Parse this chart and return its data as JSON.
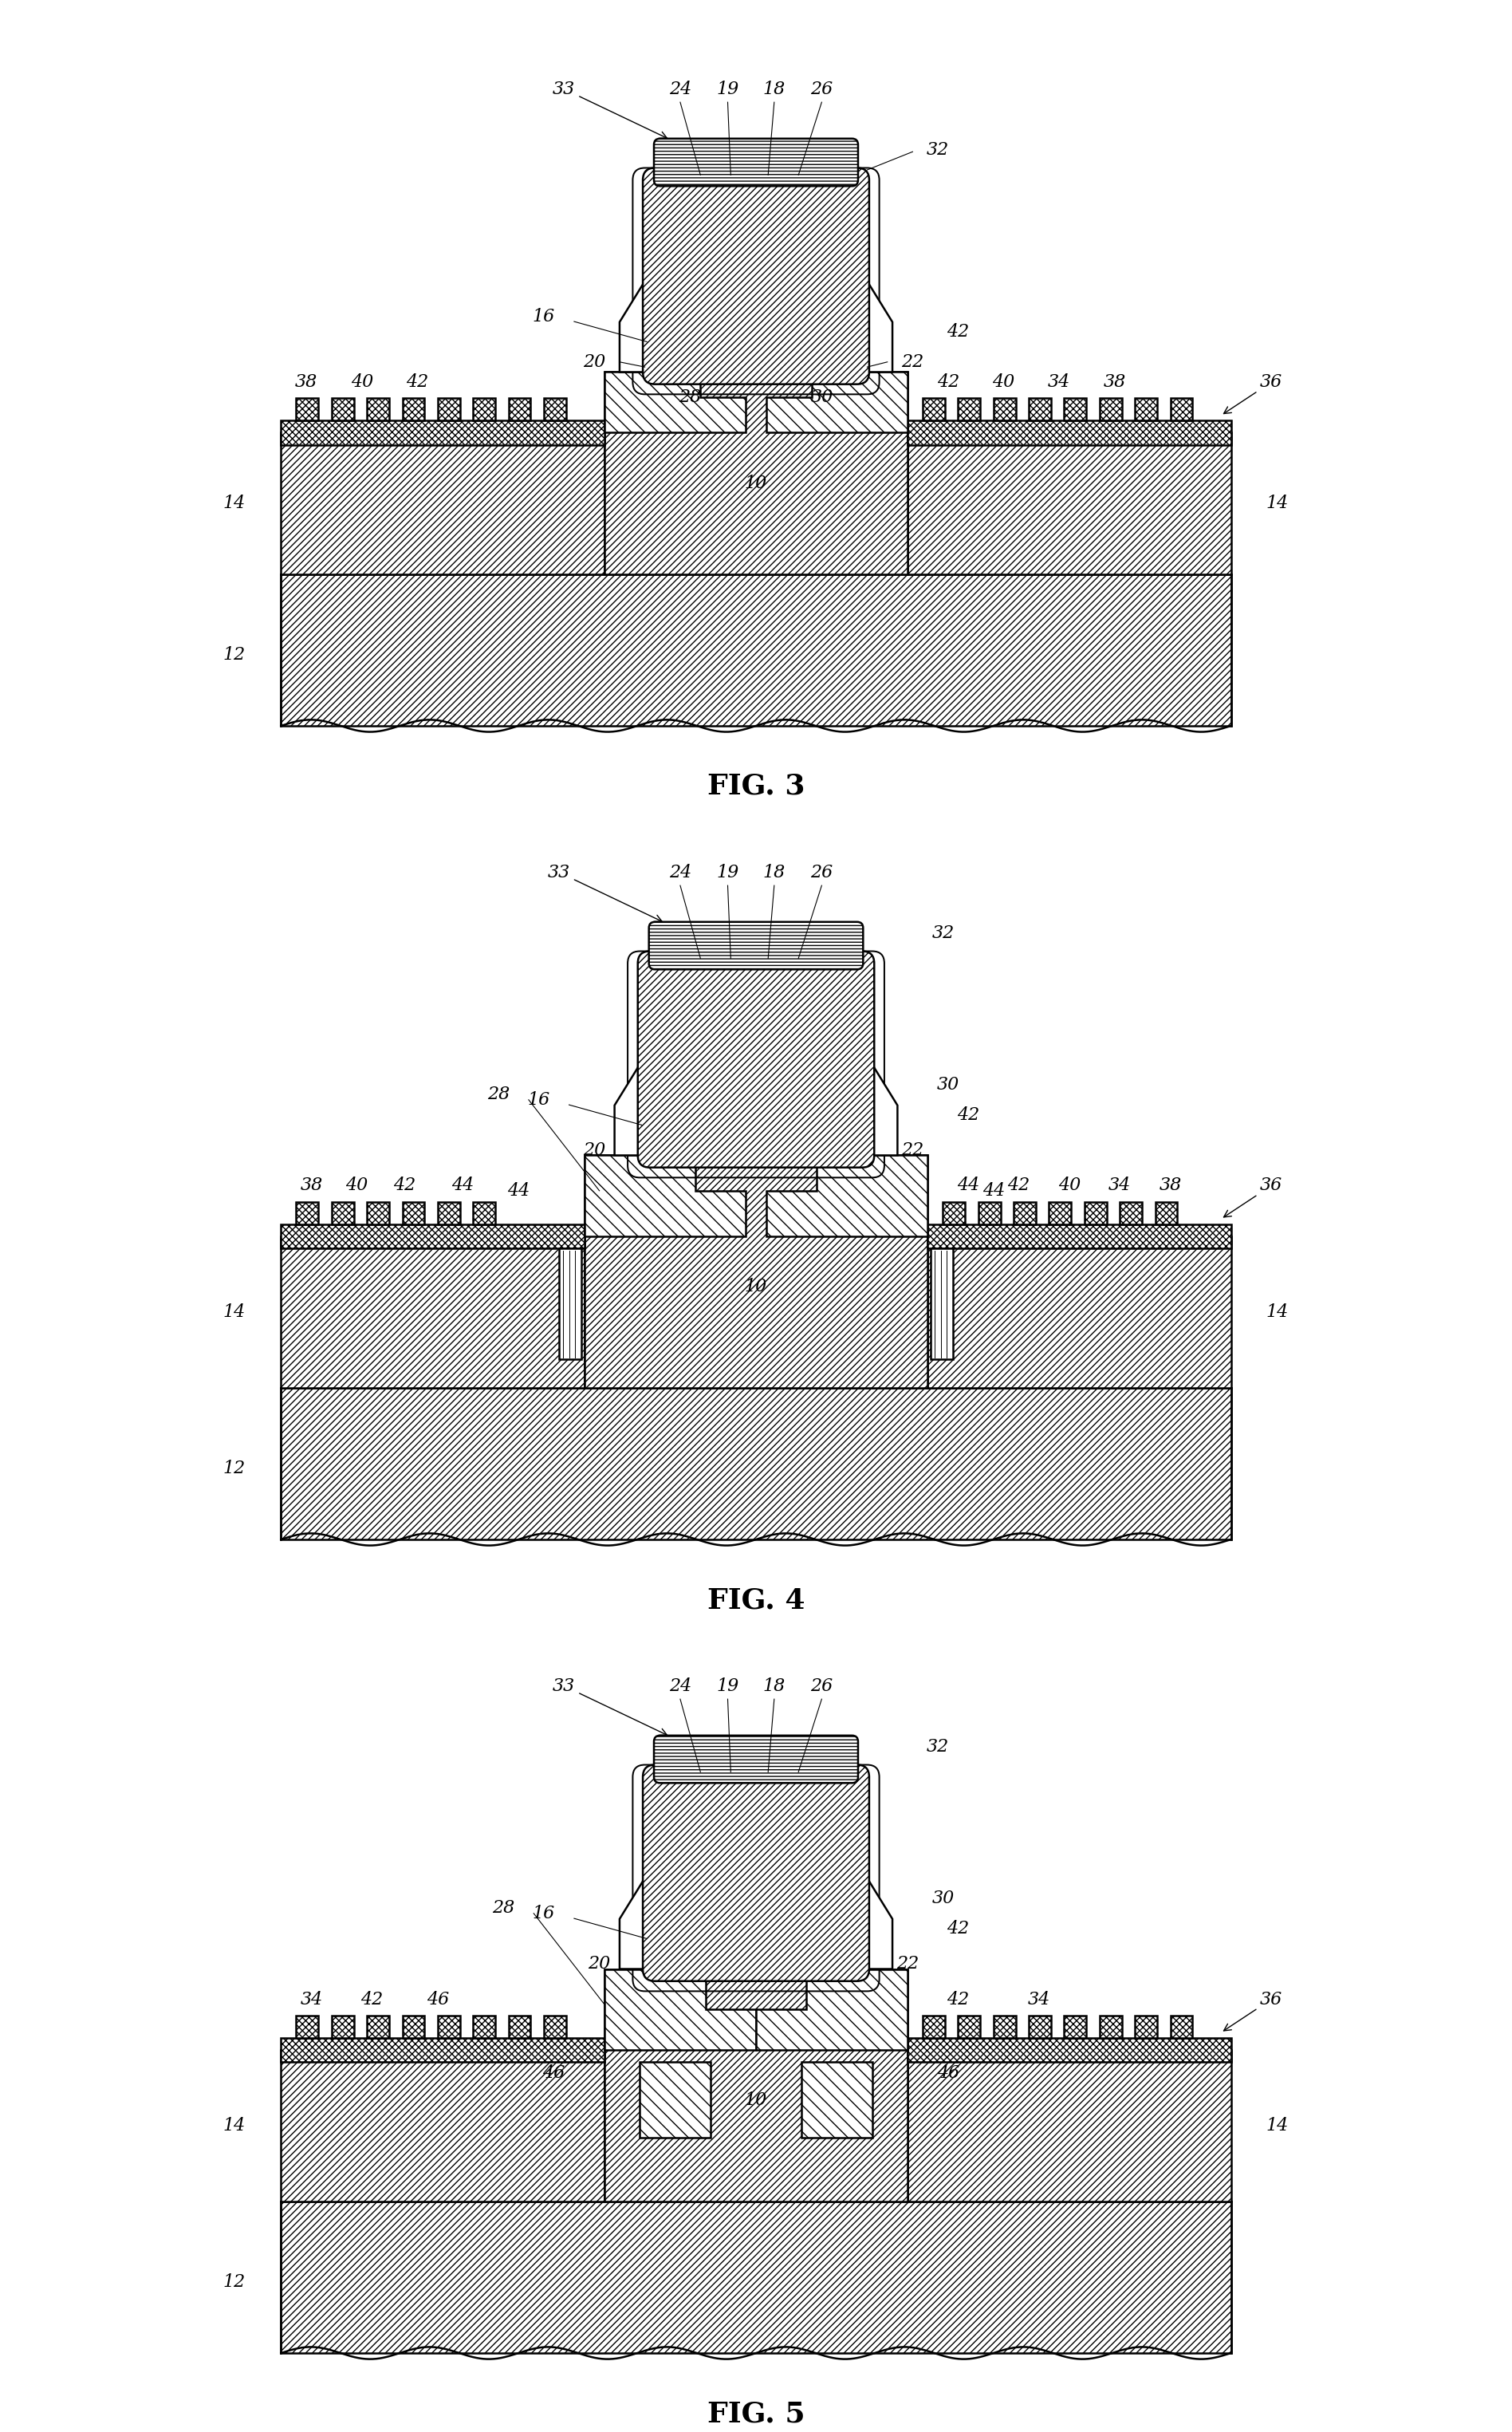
{
  "fig_labels": [
    "FIG. 3",
    "FIG. 4",
    "FIG. 5"
  ],
  "background_color": "#ffffff",
  "line_color": "#000000",
  "figure_width": 18.96,
  "figure_height": 30.49,
  "annotation_fontsize": 16,
  "fig_label_fontsize": 26,
  "lw": 1.8,
  "hatch_body": "////",
  "hatch_surface": "xxxx",
  "hatch_recess": "\\\\\\\\"
}
